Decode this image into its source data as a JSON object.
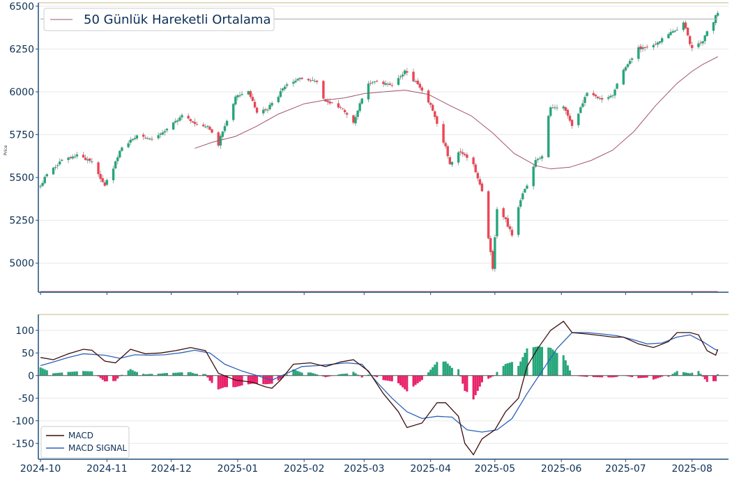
{
  "colors": {
    "axis": "#1f4e79",
    "tick_text": "#0b2f55",
    "grid": "#e8e8e8",
    "top_border": "#d8cfa8",
    "up": "#26a67a",
    "down": "#ef4455",
    "wick": "#888888",
    "ma_line": "#a3526e",
    "hline_top": "#b8b8b8",
    "hline_bottom": "#c58a9b",
    "macd": "#3a0d0d",
    "signal": "#2a62b8",
    "hist_pos": "#26a67a",
    "hist_neg": "#e8226a",
    "zero_line": "#555555"
  },
  "chart_data": [
    {
      "type": "candlestick",
      "ylabel": "Price",
      "ylim": [
        4830,
        6520
      ],
      "yticks": [
        5000,
        5250,
        5500,
        5750,
        6000,
        6250,
        6500
      ],
      "xlim": [
        "2024-09-30",
        "2025-08-18"
      ],
      "xticks": [
        "2024-10",
        "2024-11",
        "2024-12",
        "2025-01",
        "2025-02",
        "2025-03",
        "2025-04",
        "2025-05",
        "2025-06",
        "2025-07",
        "2025-08"
      ],
      "legend": {
        "position": "top-left",
        "entries": [
          "50 Günlük Hareketli Ortalama"
        ]
      },
      "anchors": [
        [
          "2024-10-01",
          5445
        ],
        [
          "2024-10-04",
          5520
        ],
        [
          "2024-10-11",
          5600
        ],
        [
          "2024-10-18",
          5630
        ],
        [
          "2024-10-25",
          5590
        ],
        [
          "2024-10-31",
          5450
        ],
        [
          "2024-11-04",
          5560
        ],
        [
          "2024-11-08",
          5680
        ],
        [
          "2024-11-15",
          5740
        ],
        [
          "2024-11-22",
          5720
        ],
        [
          "2024-11-29",
          5780
        ],
        [
          "2024-12-06",
          5860
        ],
        [
          "2024-12-13",
          5810
        ],
        [
          "2024-12-18",
          5800
        ],
        [
          "2024-12-23",
          5700
        ],
        [
          "2024-12-31",
          5970
        ],
        [
          "2025-01-06",
          6000
        ],
        [
          "2025-01-10",
          5880
        ],
        [
          "2025-01-15",
          5900
        ],
        [
          "2025-01-24",
          6050
        ],
        [
          "2025-01-31",
          6080
        ],
        [
          "2025-02-07",
          6060
        ],
        [
          "2025-02-11",
          5950
        ],
        [
          "2025-02-19",
          5900
        ],
        [
          "2025-02-24",
          5830
        ],
        [
          "2025-03-03",
          6050
        ],
        [
          "2025-03-07",
          6060
        ],
        [
          "2025-03-14",
          6040
        ],
        [
          "2025-03-20",
          6120
        ],
        [
          "2025-03-25",
          6060
        ],
        [
          "2025-03-31",
          5950
        ],
        [
          "2025-04-07",
          5720
        ],
        [
          "2025-04-10",
          5580
        ],
        [
          "2025-04-15",
          5650
        ],
        [
          "2025-04-21",
          5580
        ],
        [
          "2025-04-25",
          5420
        ],
        [
          "2025-04-30",
          4960
        ],
        [
          "2025-05-02",
          5300
        ],
        [
          "2025-05-06",
          5250
        ],
        [
          "2025-05-09",
          5160
        ],
        [
          "2025-05-13",
          5380
        ],
        [
          "2025-05-16",
          5450
        ],
        [
          "2025-05-20",
          5600
        ],
        [
          "2025-05-23",
          5620
        ],
        [
          "2025-05-27",
          5900
        ],
        [
          "2025-06-02",
          5920
        ],
        [
          "2025-06-06",
          5800
        ],
        [
          "2025-06-13",
          5990
        ],
        [
          "2025-06-20",
          5960
        ],
        [
          "2025-06-25",
          5980
        ],
        [
          "2025-06-30",
          6130
        ],
        [
          "2025-07-07",
          6250
        ],
        [
          "2025-07-14",
          6270
        ],
        [
          "2025-07-21",
          6340
        ],
        [
          "2025-07-25",
          6360
        ],
        [
          "2025-07-28",
          6400
        ],
        [
          "2025-08-01",
          6250
        ],
        [
          "2025-08-06",
          6300
        ],
        [
          "2025-08-12",
          6440
        ],
        [
          "2025-08-13",
          6460
        ]
      ],
      "moving_average_50": {
        "name": "50 Günlük Hareketli Ortalama",
        "points": [
          [
            "2024-12-12",
            5670
          ],
          [
            "2024-12-20",
            5705
          ],
          [
            "2024-12-31",
            5740
          ],
          [
            "2025-01-10",
            5800
          ],
          [
            "2025-01-20",
            5870
          ],
          [
            "2025-02-01",
            5930
          ],
          [
            "2025-02-10",
            5950
          ],
          [
            "2025-02-20",
            5965
          ],
          [
            "2025-03-01",
            5990
          ],
          [
            "2025-03-10",
            6000
          ],
          [
            "2025-03-20",
            6010
          ],
          [
            "2025-03-31",
            5985
          ],
          [
            "2025-04-10",
            5920
          ],
          [
            "2025-04-20",
            5860
          ],
          [
            "2025-04-30",
            5760
          ],
          [
            "2025-05-10",
            5640
          ],
          [
            "2025-05-20",
            5570
          ],
          [
            "2025-05-27",
            5550
          ],
          [
            "2025-06-05",
            5560
          ],
          [
            "2025-06-15",
            5600
          ],
          [
            "2025-06-25",
            5660
          ],
          [
            "2025-07-05",
            5770
          ],
          [
            "2025-07-15",
            5920
          ],
          [
            "2025-07-25",
            6050
          ],
          [
            "2025-08-01",
            6120
          ],
          [
            "2025-08-06",
            6160
          ],
          [
            "2025-08-13",
            6205
          ]
        ]
      },
      "reference_lines": [
        {
          "y": 6425,
          "from": "2024-10-01",
          "to": "2025-08-13",
          "style": "top"
        },
        {
          "y": 4835,
          "from": "2024-10-01",
          "to": "2025-08-13",
          "style": "bottom"
        }
      ]
    },
    {
      "type": "macd",
      "ylim": [
        -185,
        135
      ],
      "yticks": [
        -150,
        -100,
        -50,
        0,
        50,
        100
      ],
      "xlim": [
        "2024-09-30",
        "2025-08-18"
      ],
      "xticks": [
        "2024-10",
        "2024-11",
        "2024-12",
        "2025-01",
        "2025-02",
        "2025-03",
        "2025-04",
        "2025-05",
        "2025-06",
        "2025-07",
        "2025-08"
      ],
      "legend": {
        "position": "bottom-left",
        "entries": [
          "MACD",
          "MACD SIGNAL"
        ]
      },
      "macd": {
        "name": "MACD",
        "points": [
          [
            "2024-10-01",
            40
          ],
          [
            "2024-10-07",
            35
          ],
          [
            "2024-10-14",
            48
          ],
          [
            "2024-10-21",
            58
          ],
          [
            "2024-10-25",
            56
          ],
          [
            "2024-10-31",
            32
          ],
          [
            "2024-11-05",
            28
          ],
          [
            "2024-11-12",
            58
          ],
          [
            "2024-11-19",
            48
          ],
          [
            "2024-11-26",
            50
          ],
          [
            "2024-12-03",
            55
          ],
          [
            "2024-12-10",
            62
          ],
          [
            "2024-12-17",
            55
          ],
          [
            "2024-12-23",
            5
          ],
          [
            "2024-12-31",
            -10
          ],
          [
            "2025-01-08",
            -15
          ],
          [
            "2025-01-14",
            -25
          ],
          [
            "2025-01-17",
            -28
          ],
          [
            "2025-01-21",
            -10
          ],
          [
            "2025-01-27",
            25
          ],
          [
            "2025-02-04",
            28
          ],
          [
            "2025-02-11",
            20
          ],
          [
            "2025-02-18",
            30
          ],
          [
            "2025-02-24",
            35
          ],
          [
            "2025-03-03",
            10
          ],
          [
            "2025-03-10",
            -40
          ],
          [
            "2025-03-17",
            -80
          ],
          [
            "2025-03-21",
            -115
          ],
          [
            "2025-03-28",
            -105
          ],
          [
            "2025-04-04",
            -60
          ],
          [
            "2025-04-08",
            -60
          ],
          [
            "2025-04-14",
            -90
          ],
          [
            "2025-04-17",
            -150
          ],
          [
            "2025-04-21",
            -175
          ],
          [
            "2025-04-25",
            -140
          ],
          [
            "2025-05-01",
            -120
          ],
          [
            "2025-05-06",
            -80
          ],
          [
            "2025-05-12",
            -50
          ],
          [
            "2025-05-16",
            20
          ],
          [
            "2025-05-21",
            60
          ],
          [
            "2025-05-27",
            100
          ],
          [
            "2025-06-02",
            120
          ],
          [
            "2025-06-06",
            95
          ],
          [
            "2025-06-13",
            92
          ],
          [
            "2025-06-20",
            88
          ],
          [
            "2025-06-25",
            85
          ],
          [
            "2025-06-30",
            85
          ],
          [
            "2025-07-07",
            70
          ],
          [
            "2025-07-14",
            62
          ],
          [
            "2025-07-21",
            75
          ],
          [
            "2025-07-25",
            95
          ],
          [
            "2025-07-31",
            95
          ],
          [
            "2025-08-04",
            90
          ],
          [
            "2025-08-08",
            55
          ],
          [
            "2025-08-12",
            45
          ],
          [
            "2025-08-13",
            58
          ]
        ]
      },
      "signal": {
        "name": "MACD SIGNAL",
        "points": [
          [
            "2024-10-01",
            22
          ],
          [
            "2024-10-07",
            30
          ],
          [
            "2024-10-14",
            40
          ],
          [
            "2024-10-21",
            48
          ],
          [
            "2024-10-31",
            45
          ],
          [
            "2024-11-07",
            38
          ],
          [
            "2024-11-14",
            46
          ],
          [
            "2024-11-21",
            45
          ],
          [
            "2024-11-28",
            46
          ],
          [
            "2024-12-05",
            50
          ],
          [
            "2024-12-12",
            56
          ],
          [
            "2024-12-19",
            50
          ],
          [
            "2024-12-26",
            25
          ],
          [
            "2025-01-03",
            10
          ],
          [
            "2025-01-10",
            0
          ],
          [
            "2025-01-17",
            -10
          ],
          [
            "2025-01-24",
            5
          ],
          [
            "2025-01-31",
            20
          ],
          [
            "2025-02-07",
            22
          ],
          [
            "2025-02-14",
            25
          ],
          [
            "2025-02-21",
            28
          ],
          [
            "2025-02-28",
            25
          ],
          [
            "2025-03-07",
            -15
          ],
          [
            "2025-03-14",
            -50
          ],
          [
            "2025-03-21",
            -80
          ],
          [
            "2025-03-28",
            -95
          ],
          [
            "2025-04-04",
            -90
          ],
          [
            "2025-04-11",
            -92
          ],
          [
            "2025-04-18",
            -120
          ],
          [
            "2025-04-25",
            -125
          ],
          [
            "2025-05-02",
            -120
          ],
          [
            "2025-05-09",
            -95
          ],
          [
            "2025-05-16",
            -40
          ],
          [
            "2025-05-23",
            10
          ],
          [
            "2025-05-30",
            60
          ],
          [
            "2025-06-06",
            95
          ],
          [
            "2025-06-13",
            95
          ],
          [
            "2025-06-20",
            92
          ],
          [
            "2025-06-27",
            88
          ],
          [
            "2025-07-04",
            80
          ],
          [
            "2025-07-11",
            70
          ],
          [
            "2025-07-18",
            72
          ],
          [
            "2025-07-25",
            85
          ],
          [
            "2025-07-31",
            90
          ],
          [
            "2025-08-06",
            75
          ],
          [
            "2025-08-11",
            60
          ],
          [
            "2025-08-13",
            55
          ]
        ]
      }
    }
  ]
}
